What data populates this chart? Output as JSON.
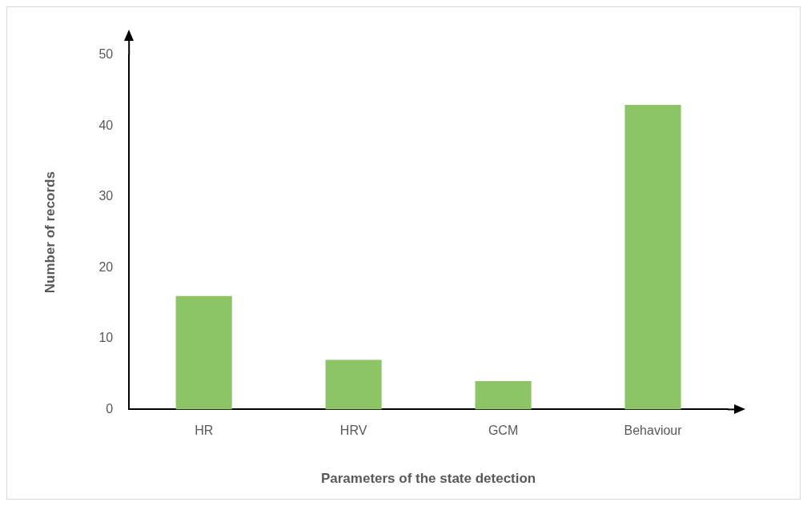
{
  "chart_data": {
    "type": "bar",
    "xlabel": "Parameters of the state detection",
    "ylabel": "Number of records",
    "categories": [
      "HR",
      "HRV",
      "GCM",
      "Behaviour"
    ],
    "values": [
      16,
      7,
      4,
      43
    ],
    "color": "#8cc466",
    "ylim": [
      0,
      50
    ],
    "yticks": [
      0,
      10,
      20,
      30,
      40,
      50
    ],
    "grid": false,
    "legend": false
  }
}
